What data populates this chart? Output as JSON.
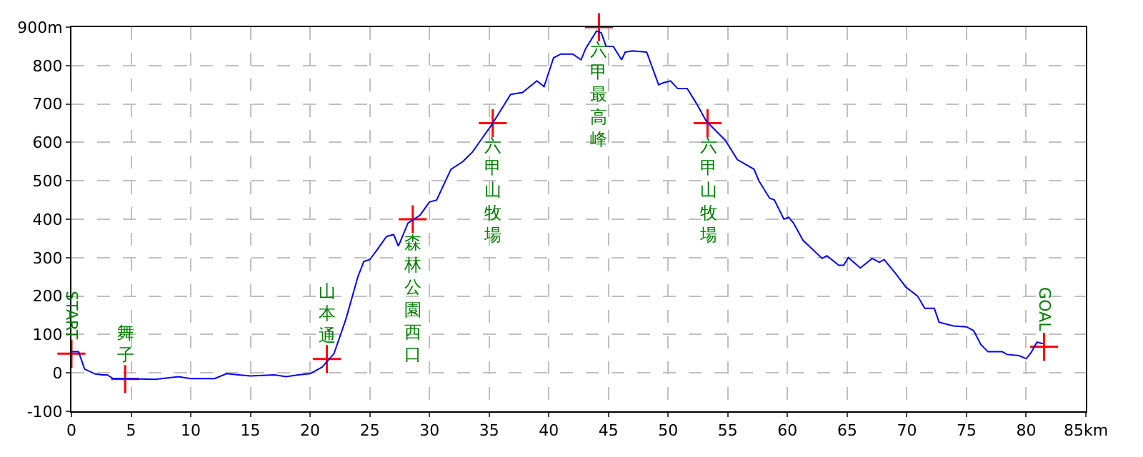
{
  "chart_data": {
    "type": "line",
    "xlim": [
      0,
      85
    ],
    "ylim": [
      -100,
      900
    ],
    "xticks": [
      0,
      5,
      10,
      15,
      20,
      25,
      30,
      35,
      40,
      45,
      50,
      55,
      60,
      65,
      70,
      75,
      80,
      {
        "value": 85,
        "label": "85km"
      }
    ],
    "yticks": [
      -100,
      0,
      100,
      200,
      300,
      400,
      500,
      600,
      700,
      800,
      {
        "value": 900,
        "label": "900m"
      }
    ],
    "grid": true,
    "series": [
      {
        "marker": "none",
        "color": "#0000ff",
        "x": [
          0,
          0.6,
          1.1,
          2,
          2.6,
          3,
          3.5,
          4.5,
          7,
          9,
          10,
          12,
          13,
          14,
          15,
          17,
          18,
          19,
          20,
          21,
          22,
          23,
          24,
          24.5,
          25,
          25.6,
          26.4,
          27,
          27.4,
          28.2,
          29.2,
          30,
          30.6,
          31.8,
          32.8,
          33.6,
          34.4,
          35.2,
          36.8,
          37.8,
          39,
          39.6,
          40.4,
          41,
          42,
          42.7,
          43.1,
          44,
          44.4,
          44.8,
          45.4,
          46.1,
          46.4,
          47,
          48.2,
          49.2,
          49.6,
          50.2,
          50.8,
          51.6,
          52.4,
          53.2,
          54.8,
          55.8,
          57.2,
          57.6,
          58.5,
          58.9,
          59.7,
          60.1,
          60.5,
          61.3,
          62.9,
          63.3,
          64.3,
          64.7,
          65.1,
          66.1,
          67.1,
          67.7,
          68.1,
          69.1,
          69.9,
          70.9,
          71.5,
          72.3,
          72.7,
          73.9,
          75,
          75.6,
          76.2,
          76.8,
          78,
          78.4,
          79.4,
          80,
          80.4,
          80.9,
          81.4
        ],
        "values": [
          55,
          55,
          10,
          -3,
          -5,
          -5,
          -15,
          -15,
          -17,
          -10,
          -15,
          -15,
          -2,
          -5,
          -8,
          -5,
          -10,
          -5,
          -2,
          15,
          50,
          140,
          250,
          290,
          295,
          320,
          355,
          360,
          330,
          390,
          410,
          445,
          450,
          530,
          550,
          575,
          610,
          645,
          725,
          730,
          760,
          745,
          820,
          830,
          830,
          815,
          845,
          890,
          885,
          850,
          850,
          815,
          835,
          838,
          835,
          750,
          755,
          760,
          740,
          740,
          700,
          655,
          605,
          555,
          530,
          500,
          455,
          450,
          400,
          405,
          390,
          345,
          298,
          305,
          280,
          280,
          300,
          273,
          298,
          288,
          295,
          257,
          224,
          200,
          168,
          168,
          132,
          122,
          120,
          110,
          74,
          55,
          55,
          48,
          45,
          37,
          52,
          80,
          76
        ]
      },
      {
        "type": "scatter",
        "marker": "cross",
        "color": "#ff0000",
        "x": [
          0,
          4.5,
          21.4,
          28.6,
          35.3,
          44.2,
          53.3,
          81.5
        ],
        "values": [
          50,
          -16,
          36,
          400,
          650,
          900,
          650,
          68
        ]
      }
    ],
    "annotations": [
      {
        "text": "START",
        "x": 0,
        "y": 50
      },
      {
        "text": "舞子",
        "x": 4.5,
        "y": -16
      },
      {
        "text": "山本通",
        "x": 21.4,
        "y": 36
      },
      {
        "text": "森林公園西口",
        "x": 28.6,
        "y": 400
      },
      {
        "text": "六甲山牧場",
        "x": 35.3,
        "y": 650
      },
      {
        "text": "六甲最高峰",
        "x": 44.2,
        "y": 900
      },
      {
        "text": "六甲山牧場",
        "x": 53.3,
        "y": 650
      },
      {
        "text": "GOAL",
        "x": 81.5,
        "y": 68
      }
    ]
  }
}
